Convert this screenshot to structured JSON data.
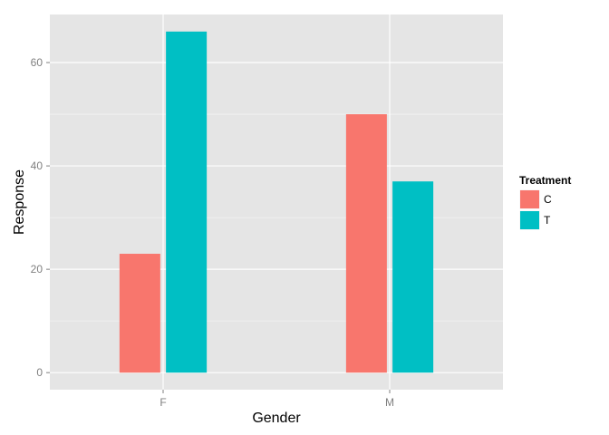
{
  "chart_data": {
    "type": "bar",
    "categories": [
      "F",
      "M"
    ],
    "series": [
      {
        "name": "C",
        "values": [
          23,
          50
        ],
        "color": "#F8766D"
      },
      {
        "name": "T",
        "values": [
          66,
          37
        ],
        "color": "#00BFC4"
      }
    ],
    "xlabel": "Gender",
    "ylabel": "Response",
    "ylim": [
      -3.3,
      69.3
    ],
    "yticks": [
      0,
      20,
      40,
      60
    ],
    "ytick_labels": [
      "0",
      "20",
      "40",
      "60"
    ],
    "legend": {
      "title": "Treatment",
      "position": "right"
    },
    "grid": true,
    "panel_background": "#E5E5E5",
    "grid_color": "#FFFFFF"
  }
}
